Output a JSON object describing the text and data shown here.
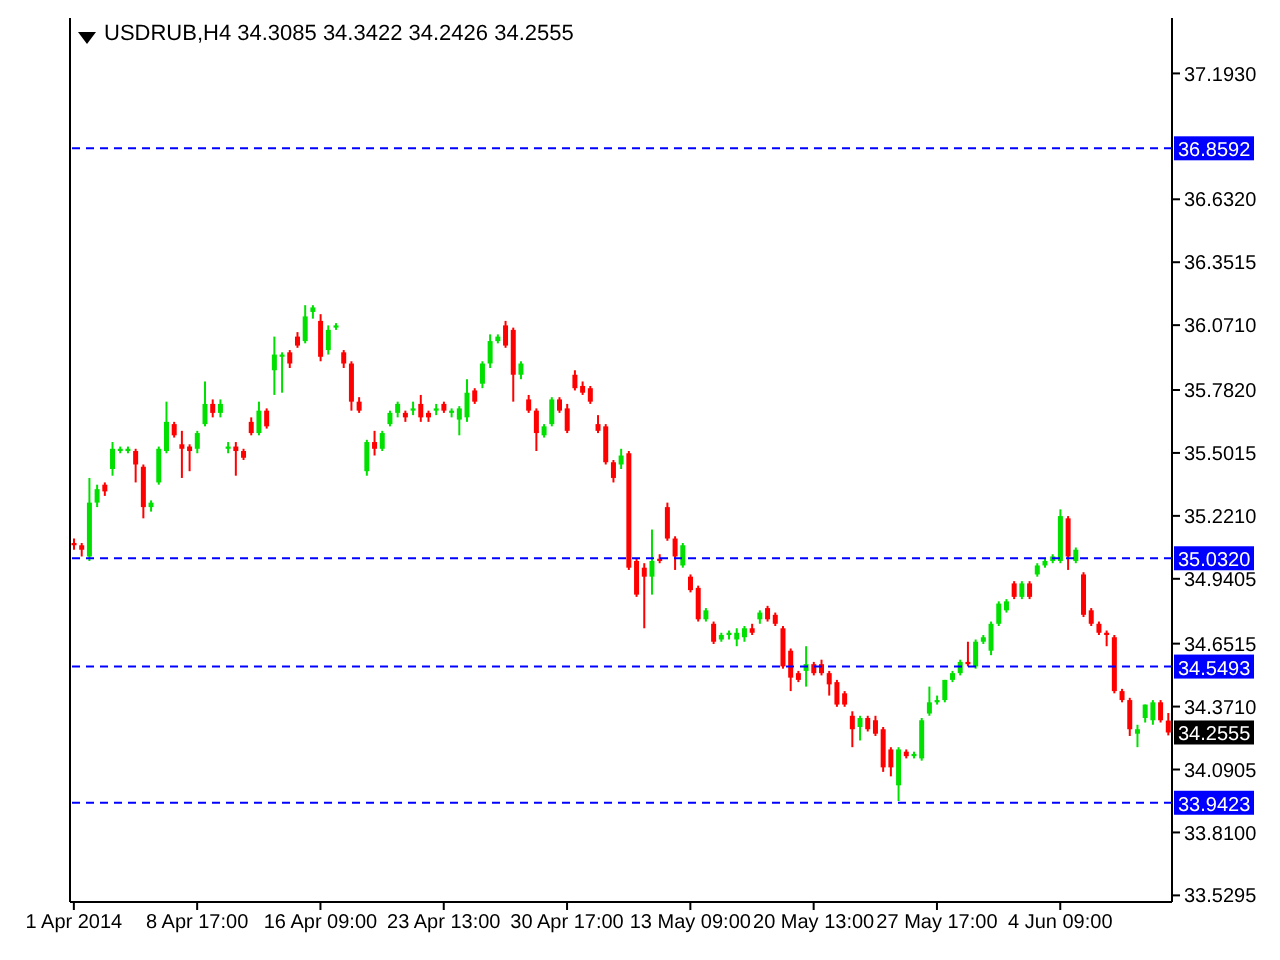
{
  "chart_data": {
    "type": "candlestick",
    "title": "USDRUB,H4 34.3085 34.3422 34.2426 34.2555",
    "categories": [
      "1 Apr 2014",
      null,
      null,
      null,
      null,
      null,
      null,
      null,
      null,
      null,
      null,
      null,
      null,
      null,
      null,
      null,
      "8 Apr 17:00",
      null,
      null,
      null,
      null,
      null,
      null,
      null,
      null,
      null,
      null,
      null,
      null,
      null,
      null,
      null,
      "16 Apr 09:00",
      null,
      null,
      null,
      null,
      null,
      null,
      null,
      null,
      null,
      null,
      null,
      null,
      null,
      null,
      null,
      "23 Apr 13:00",
      null,
      null,
      null,
      null,
      null,
      null,
      null,
      null,
      null,
      null,
      null,
      null,
      null,
      null,
      null,
      "30 Apr 17:00",
      null,
      null,
      null,
      null,
      null,
      null,
      null,
      null,
      null,
      null,
      null,
      null,
      null,
      null,
      null,
      "13 May 09:00",
      null,
      null,
      null,
      null,
      null,
      null,
      null,
      null,
      null,
      null,
      null,
      null,
      null,
      null,
      null,
      "20 May 13:00",
      null,
      null,
      null,
      null,
      null,
      null,
      null,
      null,
      null,
      null,
      null,
      null,
      null,
      null,
      null,
      "27 May 17:00",
      null,
      null,
      null,
      null,
      null,
      null,
      null,
      null,
      null,
      null,
      null,
      null,
      null,
      null,
      null,
      "4 Jun 09:00",
      null,
      null,
      null,
      null,
      null,
      null,
      null,
      null,
      null,
      null,
      null,
      null,
      null,
      null
    ],
    "ohlc": [
      [
        35.1,
        35.12,
        35.07,
        35.09
      ],
      [
        35.09,
        35.1,
        35.04,
        35.07
      ],
      [
        35.04,
        35.39,
        35.02,
        35.28
      ],
      [
        35.28,
        35.36,
        35.26,
        35.34
      ],
      [
        35.36,
        35.37,
        35.31,
        35.33
      ],
      [
        35.43,
        35.55,
        35.4,
        35.52
      ],
      [
        35.51,
        35.53,
        35.5,
        35.52
      ],
      [
        35.51,
        35.53,
        35.5,
        35.52
      ],
      [
        35.51,
        35.52,
        35.37,
        35.45
      ],
      [
        35.44,
        35.45,
        35.21,
        35.26
      ],
      [
        35.26,
        35.29,
        35.24,
        35.28
      ],
      [
        35.37,
        35.53,
        35.36,
        35.52
      ],
      [
        35.51,
        35.73,
        35.5,
        35.64
      ],
      [
        35.63,
        35.64,
        35.57,
        35.58
      ],
      [
        35.54,
        35.6,
        35.39,
        35.52
      ],
      [
        35.53,
        35.54,
        35.42,
        35.51
      ],
      [
        35.52,
        35.6,
        35.5,
        35.59
      ],
      [
        35.63,
        35.82,
        35.62,
        35.72
      ],
      [
        35.72,
        35.74,
        35.66,
        35.68
      ],
      [
        35.68,
        35.74,
        35.66,
        35.72
      ],
      [
        35.52,
        35.55,
        35.5,
        35.53
      ],
      [
        35.53,
        35.55,
        35.4,
        35.51
      ],
      [
        35.51,
        35.52,
        35.47,
        35.48
      ],
      [
        35.64,
        35.66,
        35.58,
        35.59
      ],
      [
        35.59,
        35.73,
        35.58,
        35.69
      ],
      [
        35.69,
        35.7,
        35.61,
        35.62
      ],
      [
        35.87,
        36.02,
        35.76,
        35.94
      ],
      [
        35.93,
        35.95,
        35.77,
        35.94
      ],
      [
        35.95,
        35.96,
        35.88,
        35.9
      ],
      [
        36.02,
        36.04,
        35.97,
        35.98
      ],
      [
        36.0,
        36.16,
        35.99,
        36.11
      ],
      [
        36.13,
        36.16,
        36.1,
        36.15
      ],
      [
        36.09,
        36.12,
        35.91,
        35.93
      ],
      [
        35.96,
        36.07,
        35.94,
        36.05
      ],
      [
        36.06,
        36.08,
        36.05,
        36.07
      ],
      [
        35.95,
        35.96,
        35.88,
        35.9
      ],
      [
        35.9,
        35.91,
        35.69,
        35.73
      ],
      [
        35.73,
        35.75,
        35.68,
        35.69
      ],
      [
        35.42,
        35.56,
        35.4,
        35.55
      ],
      [
        35.55,
        35.6,
        35.49,
        35.52
      ],
      [
        35.52,
        35.6,
        35.51,
        35.59
      ],
      [
        35.63,
        35.69,
        35.62,
        35.68
      ],
      [
        35.68,
        35.73,
        35.66,
        35.72
      ],
      [
        35.68,
        35.69,
        35.64,
        35.66
      ],
      [
        35.69,
        35.73,
        35.67,
        35.7
      ],
      [
        35.72,
        35.76,
        35.64,
        35.66
      ],
      [
        35.68,
        35.69,
        35.64,
        35.66
      ],
      [
        35.69,
        35.72,
        35.67,
        35.7
      ],
      [
        35.72,
        35.73,
        35.68,
        35.69
      ],
      [
        35.68,
        35.7,
        35.66,
        35.69
      ],
      [
        35.65,
        35.71,
        35.58,
        35.7
      ],
      [
        35.66,
        35.83,
        35.64,
        35.77
      ],
      [
        35.78,
        35.79,
        35.72,
        35.73
      ],
      [
        35.81,
        35.91,
        35.79,
        35.9
      ],
      [
        35.9,
        36.03,
        35.88,
        36.0
      ],
      [
        36.0,
        36.03,
        35.99,
        36.02
      ],
      [
        36.07,
        36.09,
        35.97,
        35.98
      ],
      [
        36.05,
        36.06,
        35.73,
        35.85
      ],
      [
        35.85,
        35.91,
        35.83,
        35.9
      ],
      [
        35.74,
        35.76,
        35.68,
        35.69
      ],
      [
        35.69,
        35.7,
        35.51,
        35.59
      ],
      [
        35.58,
        35.63,
        35.57,
        35.62
      ],
      [
        35.63,
        35.75,
        35.62,
        35.74
      ],
      [
        35.74,
        35.75,
        35.68,
        35.69
      ],
      [
        35.7,
        35.72,
        35.59,
        35.6
      ],
      [
        35.85,
        35.87,
        35.78,
        35.79
      ],
      [
        35.8,
        35.82,
        35.76,
        35.77
      ],
      [
        35.79,
        35.8,
        35.72,
        35.73
      ],
      [
        35.63,
        35.67,
        35.59,
        35.6
      ],
      [
        35.62,
        35.63,
        35.45,
        35.46
      ],
      [
        35.46,
        35.47,
        35.37,
        35.39
      ],
      [
        35.45,
        35.52,
        35.43,
        35.49
      ],
      [
        35.5,
        35.51,
        34.98,
        34.99
      ],
      [
        35.02,
        35.03,
        34.86,
        34.87
      ],
      [
        34.99,
        35.01,
        34.72,
        34.95
      ],
      [
        34.95,
        35.16,
        34.87,
        35.02
      ],
      [
        35.03,
        35.05,
        35.01,
        35.02
      ],
      [
        35.26,
        35.28,
        35.11,
        35.12
      ],
      [
        35.12,
        35.13,
        34.98,
        35.04
      ],
      [
        35.0,
        35.1,
        34.99,
        35.09
      ],
      [
        34.95,
        34.96,
        34.88,
        34.89
      ],
      [
        34.9,
        34.91,
        34.75,
        34.76
      ],
      [
        34.76,
        34.81,
        34.75,
        34.8
      ],
      [
        34.74,
        34.75,
        34.65,
        34.66
      ],
      [
        34.67,
        34.7,
        34.66,
        34.69
      ],
      [
        34.69,
        34.71,
        34.67,
        34.7
      ],
      [
        34.67,
        34.72,
        34.64,
        34.7
      ],
      [
        34.68,
        34.73,
        34.66,
        34.72
      ],
      [
        34.72,
        34.74,
        34.69,
        34.7
      ],
      [
        34.76,
        34.8,
        34.74,
        34.79
      ],
      [
        34.81,
        34.82,
        34.75,
        34.76
      ],
      [
        34.78,
        34.79,
        34.73,
        34.74
      ],
      [
        34.72,
        34.73,
        34.54,
        34.55
      ],
      [
        34.62,
        34.63,
        34.44,
        34.5
      ],
      [
        34.52,
        34.53,
        34.48,
        34.49
      ],
      [
        34.53,
        34.64,
        34.46,
        34.56
      ],
      [
        34.56,
        34.57,
        34.51,
        34.52
      ],
      [
        34.56,
        34.58,
        34.51,
        34.52
      ],
      [
        34.52,
        34.53,
        34.42,
        34.47
      ],
      [
        34.48,
        34.49,
        34.37,
        34.38
      ],
      [
        34.43,
        34.44,
        34.37,
        34.38
      ],
      [
        34.33,
        34.35,
        34.19,
        34.27
      ],
      [
        34.28,
        34.33,
        34.22,
        34.32
      ],
      [
        34.32,
        34.33,
        34.26,
        34.27
      ],
      [
        34.31,
        34.33,
        34.24,
        34.25
      ],
      [
        34.27,
        34.28,
        34.08,
        34.1
      ],
      [
        34.18,
        34.19,
        34.06,
        34.1
      ],
      [
        34.02,
        34.19,
        33.95,
        34.18
      ],
      [
        34.17,
        34.18,
        34.14,
        34.15
      ],
      [
        34.15,
        34.17,
        34.14,
        34.16
      ],
      [
        34.14,
        34.32,
        34.13,
        34.31
      ],
      [
        34.34,
        34.46,
        34.33,
        34.39
      ],
      [
        34.39,
        34.42,
        34.38,
        34.4
      ],
      [
        34.4,
        34.49,
        34.39,
        34.49
      ],
      [
        34.49,
        34.53,
        34.48,
        34.52
      ],
      [
        34.52,
        34.58,
        34.51,
        34.57
      ],
      [
        34.57,
        34.66,
        34.55,
        34.56
      ],
      [
        34.55,
        34.67,
        34.54,
        34.66
      ],
      [
        34.66,
        34.69,
        34.65,
        34.68
      ],
      [
        34.62,
        34.75,
        34.6,
        34.74
      ],
      [
        34.74,
        34.84,
        34.73,
        34.83
      ],
      [
        34.8,
        34.85,
        34.79,
        34.84
      ],
      [
        34.92,
        34.93,
        34.85,
        34.86
      ],
      [
        34.86,
        34.93,
        34.85,
        34.92
      ],
      [
        34.92,
        34.93,
        34.85,
        34.86
      ],
      [
        34.96,
        35.01,
        34.95,
        35.0
      ],
      [
        35.0,
        35.03,
        34.99,
        35.02
      ],
      [
        35.02,
        35.05,
        35.01,
        35.04
      ],
      [
        35.02,
        35.25,
        35.01,
        35.22
      ],
      [
        35.21,
        35.22,
        34.98,
        35.04
      ],
      [
        35.02,
        35.08,
        35.01,
        35.07
      ],
      [
        34.96,
        34.97,
        34.77,
        34.78
      ],
      [
        34.8,
        34.81,
        34.73,
        34.74
      ],
      [
        34.74,
        34.75,
        34.69,
        34.7
      ],
      [
        34.7,
        34.71,
        34.64,
        34.69
      ],
      [
        34.68,
        34.69,
        34.43,
        34.44
      ],
      [
        34.44,
        34.45,
        34.39,
        34.4
      ],
      [
        34.4,
        34.41,
        34.24,
        34.27
      ],
      [
        34.25,
        34.29,
        34.19,
        34.27
      ],
      [
        34.32,
        34.38,
        34.3,
        34.38
      ],
      [
        34.31,
        34.4,
        34.29,
        34.39
      ],
      [
        34.39,
        34.4,
        34.3,
        34.31
      ],
      [
        34.3085,
        34.3422,
        34.2426,
        34.2555
      ]
    ],
    "ylim": [
      33.5,
      37.44
    ],
    "yticks": [
      33.5295,
      {
        "value": 33.81,
        "label": "33.8100"
      },
      34.0905,
      {
        "value": 34.371,
        "label": "34.3710"
      },
      34.6515,
      34.9405,
      {
        "value": 35.221,
        "label": "35.2210"
      },
      35.5015,
      {
        "value": 35.782,
        "label": "35.7820"
      },
      {
        "value": 36.071,
        "label": "36.0710"
      },
      36.3515,
      {
        "value": 36.632,
        "label": "36.6320"
      },
      {
        "value": 37.193,
        "label": "37.1930"
      }
    ],
    "ref_lines": [
      {
        "axis": "y",
        "value": 36.8592,
        "label": "36.8592",
        "color": "#0000ff",
        "line_style": "dashed"
      },
      {
        "axis": "y",
        "value": 35.032,
        "label": "35.0320",
        "color": "#0000ff",
        "line_style": "dashed"
      },
      {
        "axis": "y",
        "value": 34.5493,
        "label": "34.5493",
        "color": "#0000ff",
        "line_style": "dashed"
      },
      {
        "axis": "y",
        "value": 33.9423,
        "label": "33.9423",
        "color": "#0000ff",
        "line_style": "dashed"
      }
    ],
    "annotations": [
      "34.2555"
    ],
    "grid": false
  }
}
